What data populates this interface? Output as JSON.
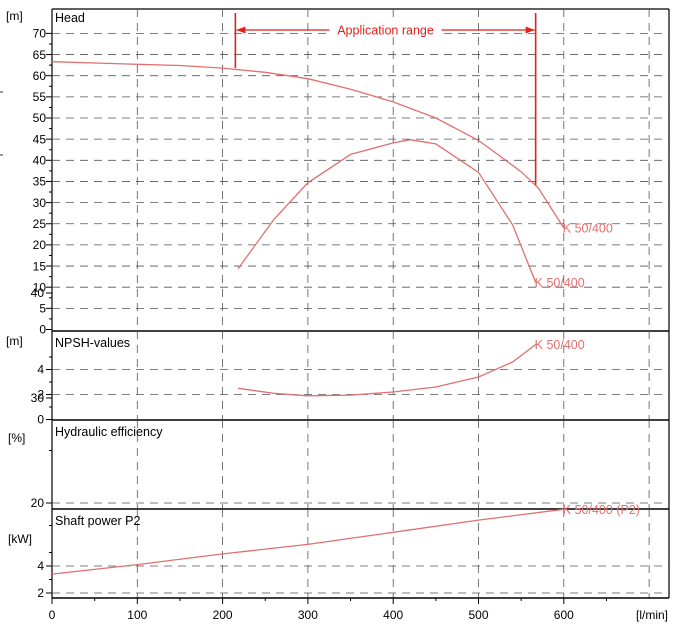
{
  "chart_data": {
    "type": "line",
    "x": {
      "unit": "[l/min]",
      "range": [
        0,
        700
      ],
      "ticks": [
        0,
        100,
        200,
        300,
        400,
        500,
        600
      ]
    },
    "colors": {
      "curve": "#e07070",
      "annotation": "#e0201a",
      "frame": "#000000",
      "grid": "#555555"
    },
    "grid": "dashed",
    "panels": [
      {
        "key": "head",
        "title": "Head",
        "unit": "[m]",
        "ylim": [
          0,
          70
        ],
        "yticks": [
          0,
          5,
          10,
          15,
          20,
          25,
          30,
          35,
          40,
          45,
          50,
          55,
          60,
          65,
          70
        ],
        "series": [
          {
            "name": "K 50/400",
            "points": [
              [
                0,
                63.3
              ],
              [
                50,
                63.0
              ],
              [
                100,
                62.7
              ],
              [
                150,
                62.4
              ],
              [
                200,
                61.8
              ],
              [
                250,
                60.8
              ],
              [
                300,
                59.3
              ],
              [
                350,
                56.8
              ],
              [
                400,
                53.8
              ],
              [
                450,
                50.0
              ],
              [
                500,
                44.7
              ],
              [
                550,
                37.3
              ],
              [
                570,
                33.5
              ],
              [
                600,
                24.0
              ]
            ]
          }
        ],
        "annotation": {
          "label": "Application range",
          "from": 215,
          "to": 567
        }
      },
      {
        "key": "npsh",
        "title": "NPSH-values",
        "unit": "[m]",
        "ylim": [
          0,
          6
        ],
        "yticks": [
          0,
          2,
          4
        ],
        "series": [
          {
            "name": "K 50/400",
            "points": [
              [
                218,
                2.5
              ],
              [
                260,
                2.1
              ],
              [
                300,
                1.9
              ],
              [
                350,
                1.95
              ],
              [
                400,
                2.2
              ],
              [
                450,
                2.6
              ],
              [
                500,
                3.4
              ],
              [
                540,
                4.6
              ],
              [
                567,
                6.0
              ]
            ]
          }
        ]
      },
      {
        "key": "efficiency",
        "title": "Hydraulic efficiency",
        "unit": "[%]",
        "ylim": [
          17,
          57
        ],
        "yticks": [
          20,
          30,
          40
        ],
        "series": [
          {
            "name": "K 50/400",
            "points": [
              [
                218,
                42.3
              ],
              [
                260,
                47.0
              ],
              [
                300,
                50.5
              ],
              [
                350,
                53.2
              ],
              [
                400,
                54.3
              ],
              [
                420,
                54.6
              ],
              [
                450,
                54.2
              ],
              [
                500,
                51.5
              ],
              [
                540,
                46.5
              ],
              [
                567,
                41.0
              ]
            ]
          }
        ]
      },
      {
        "key": "power",
        "title": "Shaft power P2",
        "unit": "[kW]",
        "ylim": [
          1.6,
          9.0
        ],
        "yticks": [
          2,
          4
        ],
        "series": [
          {
            "name": "K 50/400 (P2)",
            "points": [
              [
                0,
                3.4
              ],
              [
                100,
                4.1
              ],
              [
                200,
                4.9
              ],
              [
                300,
                5.6
              ],
              [
                400,
                6.5
              ],
              [
                500,
                7.4
              ],
              [
                600,
                8.2
              ]
            ]
          }
        ]
      }
    ]
  }
}
